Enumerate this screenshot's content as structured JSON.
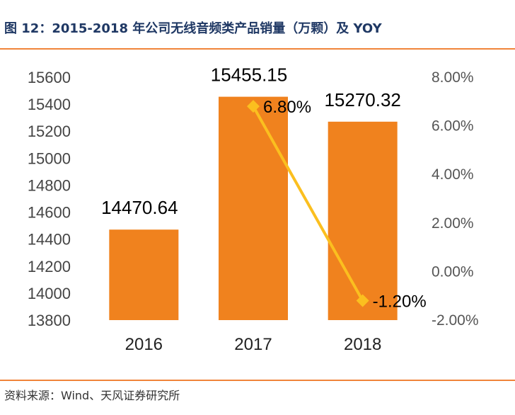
{
  "header": {
    "title": "图 12：2015-2018 年公司无线音频类产品销量（万颗）及 YOY"
  },
  "footer": {
    "source": "资料来源：Wind、天风证券研究所"
  },
  "colors": {
    "bar": "#f0821e",
    "line": "#fbbf1f",
    "rule": "#f0843a"
  },
  "chart_data": {
    "type": "bar",
    "categories": [
      "2016",
      "2017",
      "2018"
    ],
    "series": [
      {
        "values": [
          14470.64,
          15455.15,
          15270.32
        ],
        "labels": [
          "14470.64",
          "15455.15",
          "15270.32"
        ],
        "axis": "left",
        "type": "bar"
      },
      {
        "values": [
          null,
          6.8,
          -1.2
        ],
        "labels": [
          "",
          "6.80%",
          "-1.20%"
        ],
        "axis": "right",
        "type": "line"
      }
    ],
    "y_left": {
      "range": [
        13800,
        15600
      ],
      "ticks": [
        "13800",
        "14000",
        "14200",
        "14400",
        "14600",
        "14800",
        "15000",
        "15200",
        "15400",
        "15600"
      ]
    },
    "y_right": {
      "range": [
        -2.0,
        8.0
      ],
      "ticks": [
        "-2.00%",
        "0.00%",
        "2.00%",
        "4.00%",
        "6.00%",
        "8.00%"
      ]
    },
    "grid": false,
    "legend": "none"
  }
}
